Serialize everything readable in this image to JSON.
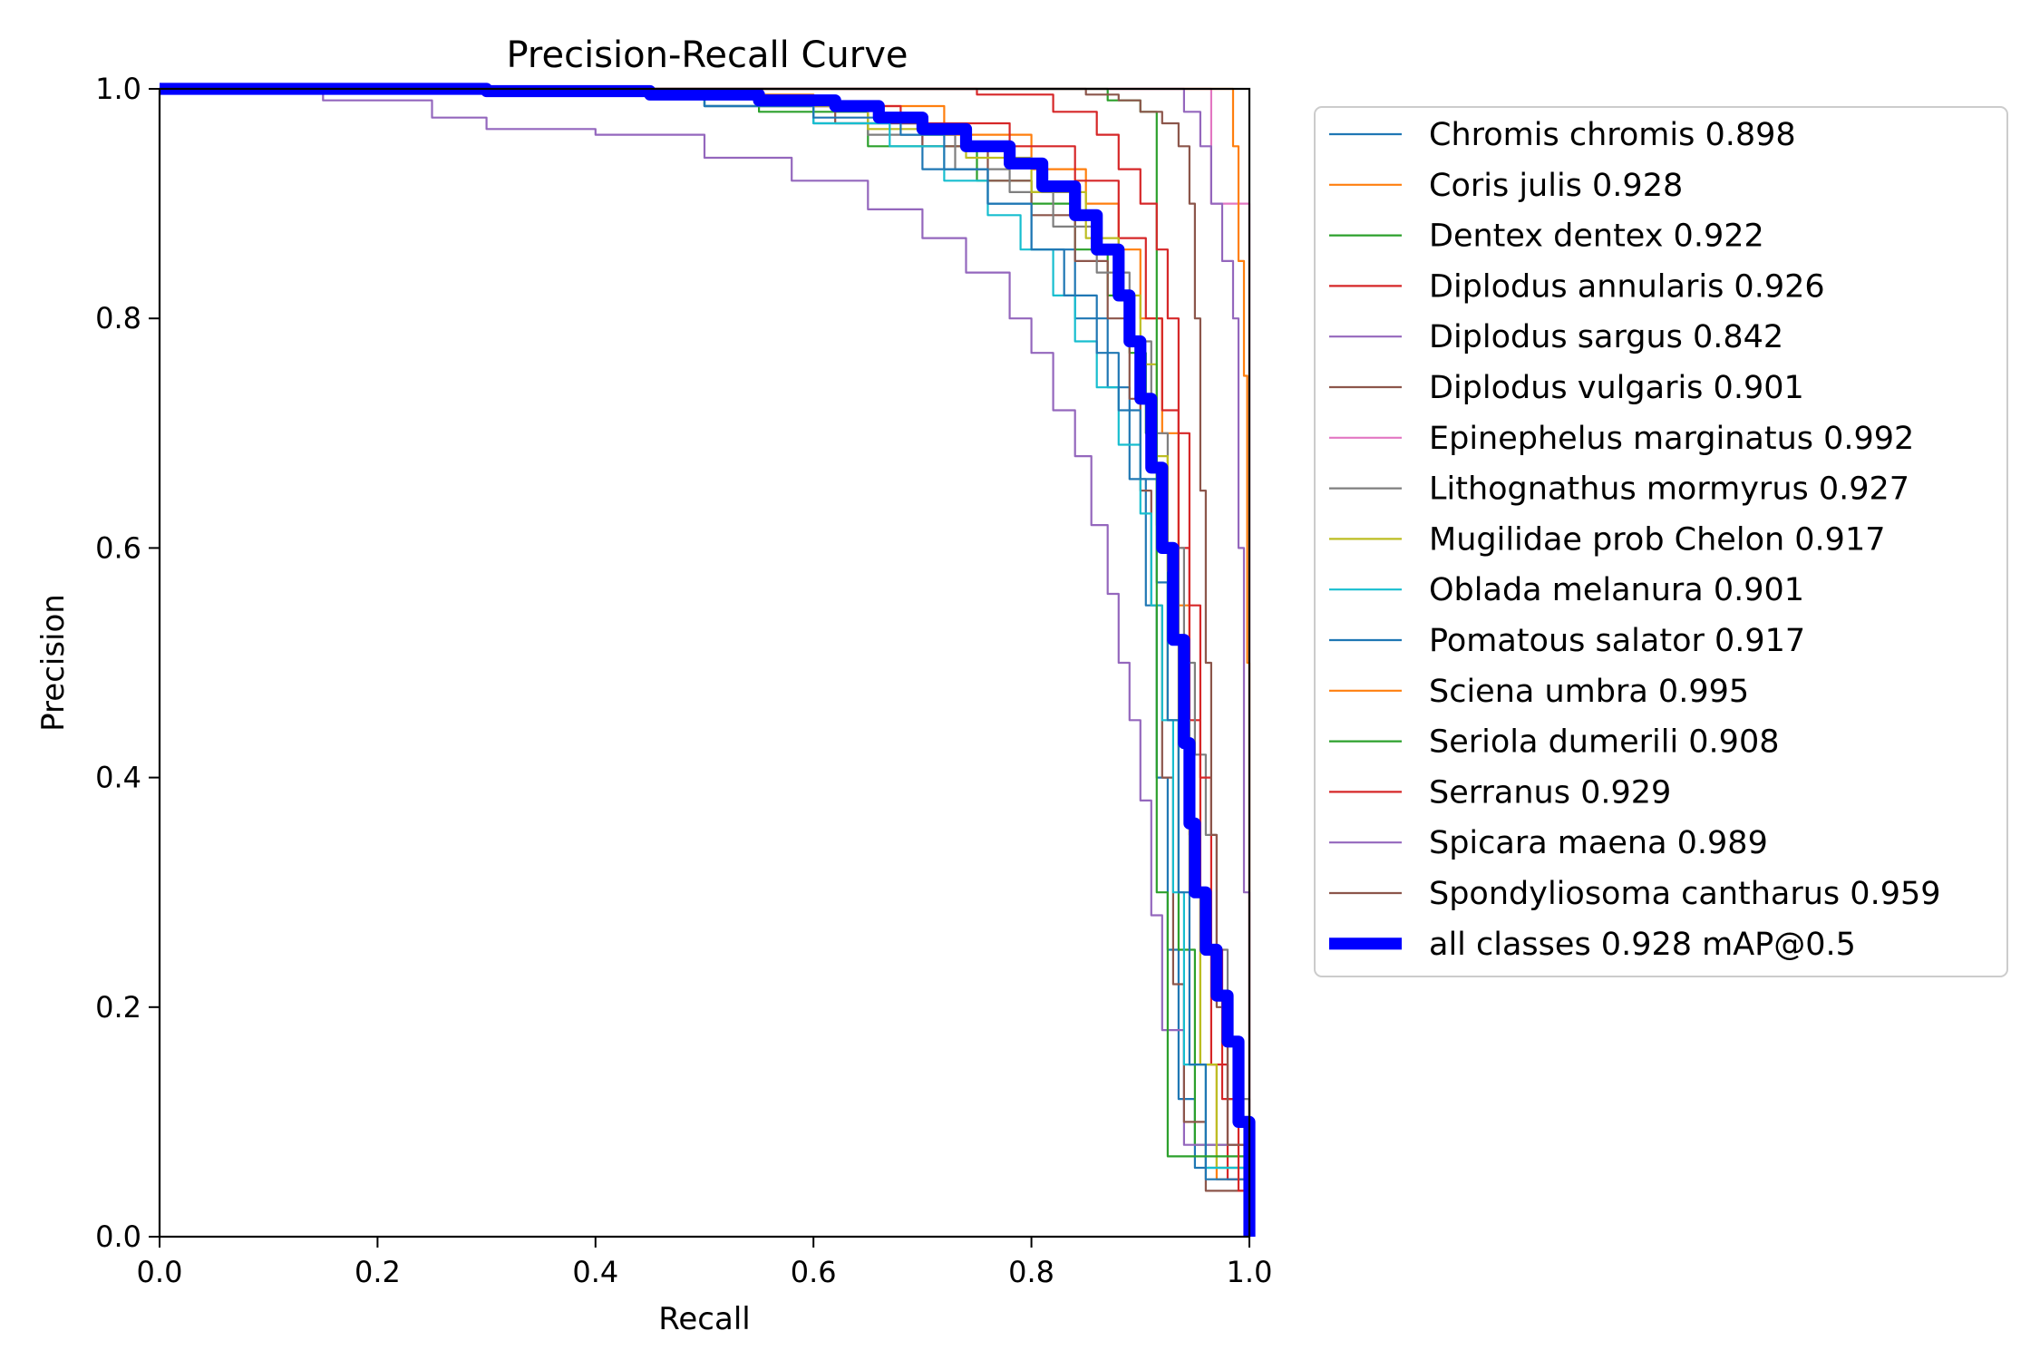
{
  "chart_data": {
    "type": "line",
    "title": "Precision-Recall Curve",
    "xlabel": "Recall",
    "ylabel": "Precision",
    "xlim": [
      0,
      1
    ],
    "ylim": [
      0,
      1
    ],
    "xticks": [
      "0.0",
      "0.2",
      "0.4",
      "0.6",
      "0.8",
      "1.0"
    ],
    "yticks": [
      "0.0",
      "0.2",
      "0.4",
      "0.6",
      "0.8",
      "1.0"
    ],
    "grid": false,
    "legend_position": "outside-right-top",
    "series": [
      {
        "name": "Chromis chromis 0.898",
        "color": "#1f77b4",
        "width": 1,
        "points": [
          [
            0,
            1
          ],
          [
            0.3,
            0.995
          ],
          [
            0.5,
            0.985
          ],
          [
            0.6,
            0.97
          ],
          [
            0.7,
            0.93
          ],
          [
            0.76,
            0.9
          ],
          [
            0.8,
            0.86
          ],
          [
            0.84,
            0.8
          ],
          [
            0.87,
            0.74
          ],
          [
            0.89,
            0.66
          ],
          [
            0.905,
            0.55
          ],
          [
            0.915,
            0.4
          ],
          [
            0.925,
            0.25
          ],
          [
            0.935,
            0.12
          ],
          [
            0.95,
            0.06
          ],
          [
            1,
            0
          ]
        ]
      },
      {
        "name": "Coris julis 0.928",
        "color": "#ff7f0e",
        "width": 1,
        "points": [
          [
            0,
            1
          ],
          [
            0.4,
            0.995
          ],
          [
            0.6,
            0.985
          ],
          [
            0.72,
            0.96
          ],
          [
            0.8,
            0.93
          ],
          [
            0.85,
            0.9
          ],
          [
            0.88,
            0.86
          ],
          [
            0.9,
            0.8
          ],
          [
            0.92,
            0.7
          ],
          [
            0.935,
            0.55
          ],
          [
            0.945,
            0.35
          ],
          [
            0.955,
            0.15
          ],
          [
            0.97,
            0.05
          ],
          [
            1,
            0
          ]
        ]
      },
      {
        "name": "Dentex dentex 0.922",
        "color": "#2ca02c",
        "width": 1,
        "points": [
          [
            0,
            1
          ],
          [
            0.4,
            0.995
          ],
          [
            0.55,
            0.98
          ],
          [
            0.65,
            0.95
          ],
          [
            0.75,
            0.92
          ],
          [
            0.8,
            0.9
          ],
          [
            0.84,
            0.86
          ],
          [
            0.87,
            0.82
          ],
          [
            0.89,
            0.77
          ],
          [
            0.905,
            0.7
          ],
          [
            0.915,
            0.62
          ],
          [
            0.925,
            0.45
          ],
          [
            0.935,
            0.25
          ],
          [
            0.95,
            0.08
          ],
          [
            1,
            0
          ]
        ]
      },
      {
        "name": "Diplodus annularis 0.926",
        "color": "#d62728",
        "width": 1,
        "points": [
          [
            0,
            1
          ],
          [
            0.4,
            0.995
          ],
          [
            0.55,
            0.985
          ],
          [
            0.68,
            0.97
          ],
          [
            0.78,
            0.95
          ],
          [
            0.84,
            0.92
          ],
          [
            0.88,
            0.87
          ],
          [
            0.905,
            0.8
          ],
          [
            0.92,
            0.72
          ],
          [
            0.935,
            0.6
          ],
          [
            0.945,
            0.45
          ],
          [
            0.955,
            0.3
          ],
          [
            0.965,
            0.15
          ],
          [
            0.98,
            0.05
          ],
          [
            1,
            0
          ]
        ]
      },
      {
        "name": "Diplodus sargus 0.842",
        "color": "#9467bd",
        "width": 1,
        "points": [
          [
            0,
            1
          ],
          [
            0.15,
            0.99
          ],
          [
            0.25,
            0.975
          ],
          [
            0.3,
            0.965
          ],
          [
            0.4,
            0.96
          ],
          [
            0.5,
            0.94
          ],
          [
            0.58,
            0.92
          ],
          [
            0.65,
            0.895
          ],
          [
            0.7,
            0.87
          ],
          [
            0.74,
            0.84
          ],
          [
            0.78,
            0.8
          ],
          [
            0.8,
            0.77
          ],
          [
            0.82,
            0.72
          ],
          [
            0.84,
            0.68
          ],
          [
            0.855,
            0.62
          ],
          [
            0.87,
            0.56
          ],
          [
            0.88,
            0.5
          ],
          [
            0.89,
            0.45
          ],
          [
            0.9,
            0.38
          ],
          [
            0.91,
            0.28
          ],
          [
            0.92,
            0.18
          ],
          [
            0.94,
            0.08
          ],
          [
            1,
            0
          ]
        ]
      },
      {
        "name": "Diplodus vulgaris 0.901",
        "color": "#8c564b",
        "width": 1,
        "points": [
          [
            0,
            1
          ],
          [
            0.35,
            0.995
          ],
          [
            0.5,
            0.985
          ],
          [
            0.62,
            0.97
          ],
          [
            0.7,
            0.95
          ],
          [
            0.76,
            0.92
          ],
          [
            0.8,
            0.89
          ],
          [
            0.84,
            0.85
          ],
          [
            0.87,
            0.8
          ],
          [
            0.89,
            0.73
          ],
          [
            0.9,
            0.65
          ],
          [
            0.91,
            0.55
          ],
          [
            0.92,
            0.4
          ],
          [
            0.93,
            0.22
          ],
          [
            0.94,
            0.1
          ],
          [
            0.96,
            0.04
          ],
          [
            1,
            0
          ]
        ]
      },
      {
        "name": "Epinephelus marginatus 0.992",
        "color": "#e377c2",
        "width": 1,
        "points": [
          [
            0,
            1
          ],
          [
            0.95,
            1
          ],
          [
            0.96,
            1
          ],
          [
            0.965,
            0.9
          ],
          [
            0.99,
            0.9
          ],
          [
            1,
            0.9
          ],
          [
            1,
            0
          ]
        ]
      },
      {
        "name": "Lithognathus mormyrus 0.927",
        "color": "#7f7f7f",
        "width": 1,
        "points": [
          [
            0,
            1
          ],
          [
            0.4,
            0.995
          ],
          [
            0.55,
            0.985
          ],
          [
            0.65,
            0.96
          ],
          [
            0.73,
            0.93
          ],
          [
            0.78,
            0.91
          ],
          [
            0.82,
            0.88
          ],
          [
            0.86,
            0.84
          ],
          [
            0.89,
            0.78
          ],
          [
            0.91,
            0.7
          ],
          [
            0.925,
            0.6
          ],
          [
            0.94,
            0.5
          ],
          [
            0.95,
            0.42
          ],
          [
            0.96,
            0.35
          ],
          [
            0.97,
            0.25
          ],
          [
            0.98,
            0.12
          ],
          [
            1,
            0
          ]
        ]
      },
      {
        "name": "Mugilidae prob Chelon 0.917",
        "color": "#bcbd22",
        "width": 1,
        "points": [
          [
            0,
            1
          ],
          [
            0.4,
            0.995
          ],
          [
            0.55,
            0.985
          ],
          [
            0.65,
            0.965
          ],
          [
            0.74,
            0.94
          ],
          [
            0.8,
            0.91
          ],
          [
            0.85,
            0.87
          ],
          [
            0.88,
            0.82
          ],
          [
            0.9,
            0.76
          ],
          [
            0.915,
            0.68
          ],
          [
            0.925,
            0.58
          ],
          [
            0.935,
            0.45
          ],
          [
            0.945,
            0.3
          ],
          [
            0.955,
            0.15
          ],
          [
            0.97,
            0.06
          ],
          [
            1,
            0
          ]
        ]
      },
      {
        "name": "Oblada melanura 0.901",
        "color": "#17becf",
        "width": 1,
        "points": [
          [
            0,
            1
          ],
          [
            0.35,
            0.995
          ],
          [
            0.5,
            0.985
          ],
          [
            0.6,
            0.97
          ],
          [
            0.67,
            0.95
          ],
          [
            0.72,
            0.92
          ],
          [
            0.76,
            0.89
          ],
          [
            0.79,
            0.86
          ],
          [
            0.82,
            0.82
          ],
          [
            0.84,
            0.78
          ],
          [
            0.86,
            0.74
          ],
          [
            0.88,
            0.69
          ],
          [
            0.9,
            0.63
          ],
          [
            0.91,
            0.55
          ],
          [
            0.92,
            0.45
          ],
          [
            0.93,
            0.3
          ],
          [
            0.94,
            0.15
          ],
          [
            0.96,
            0.06
          ],
          [
            1,
            0
          ]
        ]
      },
      {
        "name": "Pomatous salator 0.917",
        "color": "#1f77b4",
        "width": 1,
        "points": [
          [
            0,
            1
          ],
          [
            0.4,
            0.995
          ],
          [
            0.5,
            0.985
          ],
          [
            0.6,
            0.975
          ],
          [
            0.68,
            0.96
          ],
          [
            0.72,
            0.93
          ],
          [
            0.76,
            0.9
          ],
          [
            0.8,
            0.86
          ],
          [
            0.83,
            0.82
          ],
          [
            0.86,
            0.77
          ],
          [
            0.88,
            0.72
          ],
          [
            0.9,
            0.66
          ],
          [
            0.915,
            0.57
          ],
          [
            0.925,
            0.45
          ],
          [
            0.935,
            0.3
          ],
          [
            0.945,
            0.15
          ],
          [
            0.96,
            0.05
          ],
          [
            1,
            0
          ]
        ]
      },
      {
        "name": "Sciena umbra 0.995",
        "color": "#ff7f0e",
        "width": 1,
        "points": [
          [
            0,
            1
          ],
          [
            0.98,
            1
          ],
          [
            0.985,
            0.95
          ],
          [
            0.99,
            0.85
          ],
          [
            0.995,
            0.75
          ],
          [
            0.998,
            0.5
          ],
          [
            1,
            0.25
          ],
          [
            1,
            0
          ]
        ]
      },
      {
        "name": "Seriola dumerili 0.908",
        "color": "#2ca02c",
        "width": 1,
        "points": [
          [
            0,
            1
          ],
          [
            0.8,
            1
          ],
          [
            0.85,
            1
          ],
          [
            0.87,
            0.99
          ],
          [
            0.9,
            0.98
          ],
          [
            0.915,
            0.97
          ],
          [
            0.915,
            0.3
          ],
          [
            0.925,
            0.07
          ],
          [
            1,
            0
          ]
        ]
      },
      {
        "name": "Serranus 0.929",
        "color": "#d62728",
        "width": 1,
        "points": [
          [
            0,
            1
          ],
          [
            0.6,
            1
          ],
          [
            0.75,
            0.995
          ],
          [
            0.82,
            0.98
          ],
          [
            0.86,
            0.96
          ],
          [
            0.88,
            0.93
          ],
          [
            0.9,
            0.9
          ],
          [
            0.915,
            0.86
          ],
          [
            0.925,
            0.8
          ],
          [
            0.935,
            0.7
          ],
          [
            0.945,
            0.55
          ],
          [
            0.955,
            0.4
          ],
          [
            0.965,
            0.25
          ],
          [
            0.975,
            0.12
          ],
          [
            0.99,
            0.04
          ],
          [
            1,
            0
          ]
        ]
      },
      {
        "name": "Spicara maena 0.989",
        "color": "#9467bd",
        "width": 1,
        "points": [
          [
            0,
            1
          ],
          [
            0.9,
            1
          ],
          [
            0.93,
            1
          ],
          [
            0.94,
            0.98
          ],
          [
            0.955,
            0.95
          ],
          [
            0.965,
            0.9
          ],
          [
            0.975,
            0.85
          ],
          [
            0.985,
            0.8
          ],
          [
            0.99,
            0.6
          ],
          [
            0.995,
            0.3
          ],
          [
            1,
            0
          ]
        ]
      },
      {
        "name": "Spondyliosoma cantharus 0.959",
        "color": "#8c564b",
        "width": 1,
        "points": [
          [
            0,
            1
          ],
          [
            0.75,
            1
          ],
          [
            0.85,
            0.995
          ],
          [
            0.88,
            0.99
          ],
          [
            0.9,
            0.98
          ],
          [
            0.92,
            0.97
          ],
          [
            0.935,
            0.95
          ],
          [
            0.945,
            0.9
          ],
          [
            0.95,
            0.8
          ],
          [
            0.955,
            0.65
          ],
          [
            0.96,
            0.5
          ],
          [
            0.965,
            0.35
          ],
          [
            0.97,
            0.2
          ],
          [
            0.98,
            0.08
          ],
          [
            1,
            0
          ]
        ]
      },
      {
        "name": "all classes 0.928 mAP@0.5",
        "color": "#0000ff",
        "width": 6,
        "points": [
          [
            0,
            1
          ],
          [
            0.3,
            0.998
          ],
          [
            0.45,
            0.995
          ],
          [
            0.55,
            0.99
          ],
          [
            0.62,
            0.985
          ],
          [
            0.66,
            0.975
          ],
          [
            0.7,
            0.965
          ],
          [
            0.74,
            0.95
          ],
          [
            0.78,
            0.935
          ],
          [
            0.81,
            0.915
          ],
          [
            0.84,
            0.89
          ],
          [
            0.86,
            0.86
          ],
          [
            0.88,
            0.82
          ],
          [
            0.89,
            0.78
          ],
          [
            0.9,
            0.73
          ],
          [
            0.91,
            0.67
          ],
          [
            0.92,
            0.6
          ],
          [
            0.93,
            0.52
          ],
          [
            0.94,
            0.43
          ],
          [
            0.945,
            0.36
          ],
          [
            0.95,
            0.3
          ],
          [
            0.96,
            0.25
          ],
          [
            0.97,
            0.21
          ],
          [
            0.98,
            0.17
          ],
          [
            0.99,
            0.1
          ],
          [
            1,
            0
          ]
        ]
      }
    ]
  }
}
